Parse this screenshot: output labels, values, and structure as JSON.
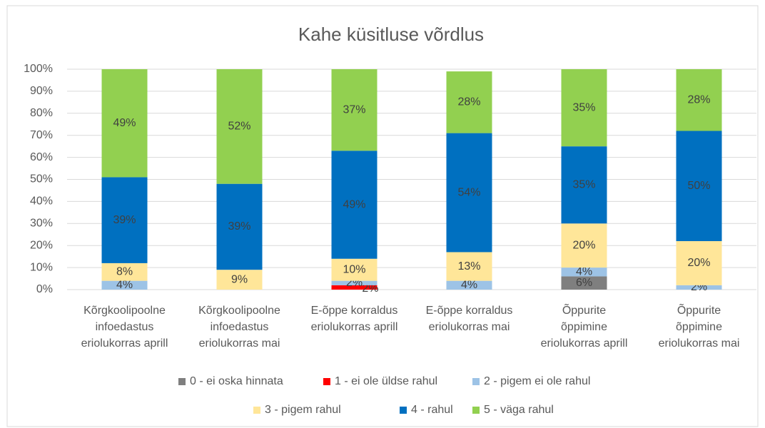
{
  "chart_data": {
    "type": "stacked_bar",
    "title": "Kahe küsitluse võrdlus",
    "categories": [
      [
        "Kõrgkoolipoolne",
        "infoedastus",
        "eriolukorras aprill"
      ],
      [
        "Kõrgkoolipoolne",
        "infoedastus",
        "eriolukorras mai"
      ],
      [
        "E-õppe korraldus",
        "eriolukorras aprill"
      ],
      [
        "E-õppe korraldus",
        "eriolukorras mai"
      ],
      [
        "Õppurite",
        "õppimine",
        "eriolukorras aprill"
      ],
      [
        "Õppurite",
        "õppimine",
        "eriolukorras mai"
      ]
    ],
    "series": [
      {
        "name": "0 - ei oska hinnata",
        "color": "#7f7f7f",
        "values": [
          null,
          null,
          null,
          null,
          6,
          null
        ],
        "value_labels": [
          null,
          null,
          null,
          null,
          "6%",
          null
        ]
      },
      {
        "name": "1 - ei ole üldse rahul",
        "color": "#ff0000",
        "values": [
          null,
          null,
          2,
          null,
          null,
          null
        ],
        "value_labels": [
          null,
          null,
          "2%",
          null,
          null,
          null
        ]
      },
      {
        "name": "2 - pigem ei ole rahul",
        "color": "#9dc3e6",
        "values": [
          4,
          null,
          2,
          4,
          4,
          2
        ],
        "value_labels": [
          "4%",
          null,
          "2%",
          "4%",
          "4%",
          "2%"
        ]
      },
      {
        "name": "3 - pigem rahul",
        "color": "#ffe699",
        "values": [
          8,
          9,
          10,
          13,
          20,
          20
        ],
        "value_labels": [
          "8%",
          "9%",
          "10%",
          "13%",
          "20%",
          "20%"
        ]
      },
      {
        "name": "4 - rahul",
        "color": "#0070c0",
        "values": [
          39,
          39,
          49,
          54,
          35,
          50
        ],
        "value_labels": [
          "39%",
          "39%",
          "49%",
          "54%",
          "35%",
          "50%"
        ]
      },
      {
        "name": "5 - väga rahul",
        "color": "#92d050",
        "values": [
          49,
          52,
          37,
          28,
          35,
          28
        ],
        "value_labels": [
          "49%",
          "52%",
          "37%",
          "28%",
          "35%",
          "28%"
        ]
      }
    ],
    "ylim": [
      0,
      100
    ],
    "yticks": [
      {
        "value": 0,
        "label": "0%"
      },
      {
        "value": 10,
        "label": "10%"
      },
      {
        "value": 20,
        "label": "20%"
      },
      {
        "value": 30,
        "label": "30%"
      },
      {
        "value": 40,
        "label": "40%"
      },
      {
        "value": 50,
        "label": "50%"
      },
      {
        "value": 60,
        "label": "60%"
      },
      {
        "value": 70,
        "label": "70%"
      },
      {
        "value": 80,
        "label": "80%"
      },
      {
        "value": 90,
        "label": "90%"
      },
      {
        "value": 100,
        "label": "100%"
      }
    ],
    "grid": true,
    "legend": "bottom"
  }
}
